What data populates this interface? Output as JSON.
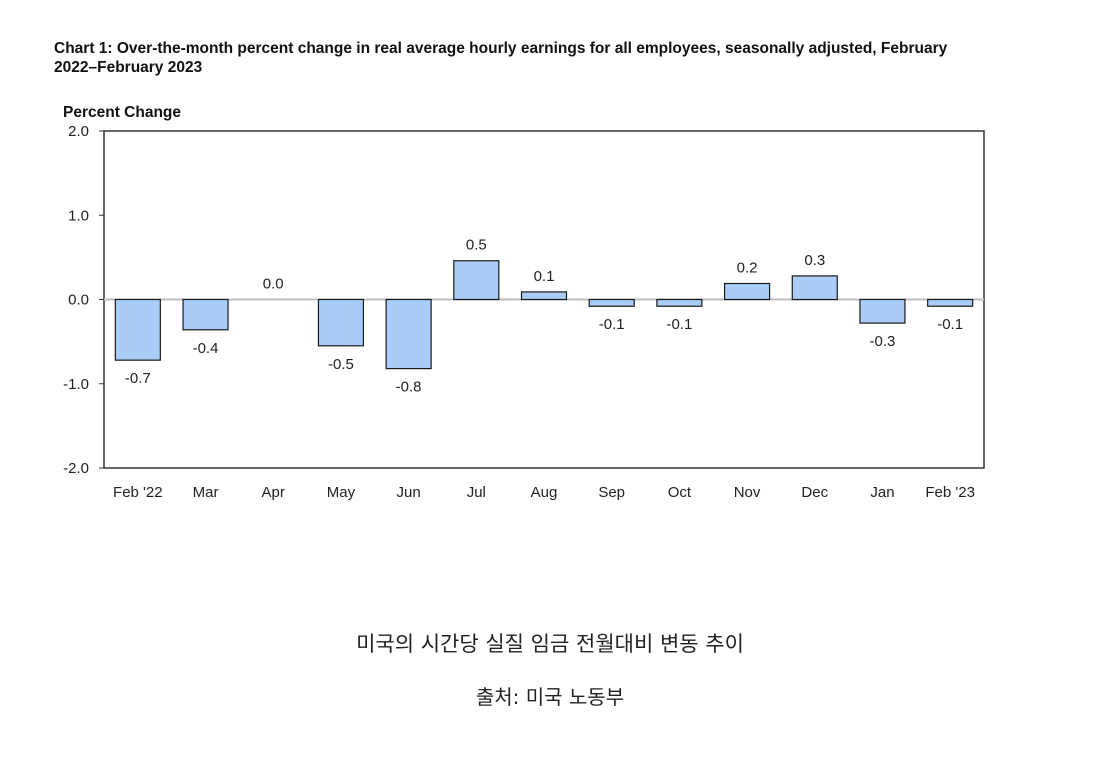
{
  "chart_data": {
    "type": "bar",
    "title": "Chart 1: Over-the-month percent change in real average hourly earnings for all employees, seasonally adjusted, February 2022–February 2023",
    "xlabel": "",
    "ylabel": "Percent Change",
    "categories": [
      "Feb '22",
      "Mar",
      "Apr",
      "May",
      "Jun",
      "Jul",
      "Aug",
      "Sep",
      "Oct",
      "Nov",
      "Dec",
      "Jan",
      "Feb '23"
    ],
    "values": [
      -0.72,
      -0.36,
      0.0,
      -0.55,
      -0.82,
      0.46,
      0.09,
      -0.08,
      -0.08,
      0.19,
      0.28,
      -0.28,
      -0.08
    ],
    "value_labels": [
      "-0.7",
      "-0.4",
      "0.0",
      "-0.5",
      "-0.8",
      "0.5",
      "0.1",
      "-0.1",
      "-0.1",
      "0.2",
      "0.3",
      "-0.3",
      "-0.1"
    ],
    "ylim": [
      -2.0,
      2.0
    ],
    "yticks": [
      2.0,
      1.0,
      0.0,
      -1.0,
      -2.0
    ],
    "ytick_labels": [
      "2.0",
      "1.0",
      "0.0",
      "-1.0",
      "-2.0"
    ],
    "grid": false,
    "colors": {
      "bar_fill": "#a9cdf7",
      "bar_stroke": "#1a1a1a",
      "zero_line": "#bdbdbd",
      "frame": "#333333"
    }
  },
  "caption": {
    "main": "미국의 시간당 실질 임금 전월대비 변동 추이",
    "source": "출처: 미국 노동부"
  }
}
